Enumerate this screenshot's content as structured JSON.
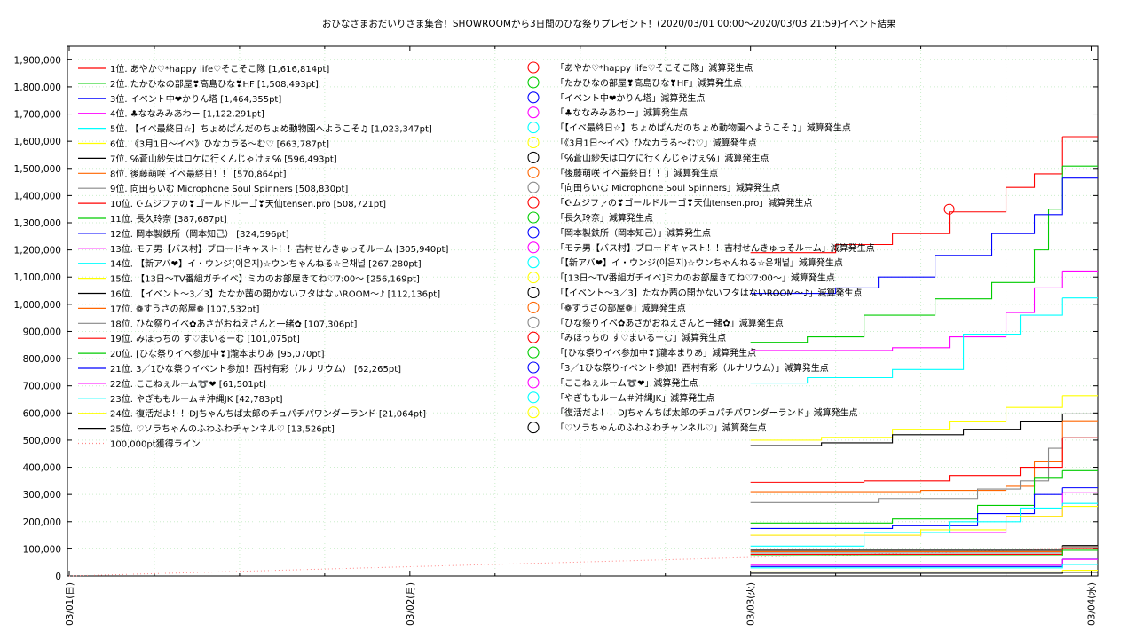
{
  "chart_data": {
    "type": "line",
    "title": "おひなさまおだいりさま集合！SHOWROOMから3日間のひな祭りプレゼント！(2020/03/01 00:00～2020/03/03 21:59)",
    "subtitle": "イベント結果",
    "xlabel": "",
    "ylabel": "",
    "ylim": [
      0,
      1950000
    ],
    "yticks": [
      "0",
      "100,000",
      "200,000",
      "300,000",
      "400,000",
      "500,000",
      "600,000",
      "700,000",
      "800,000",
      "900,000",
      "1,000,000",
      "1,100,000",
      "1,200,000",
      "1,300,000",
      "1,400,000",
      "1,500,000",
      "1,600,000",
      "1,700,000",
      "1,800,000",
      "1,900,000"
    ],
    "xlim": [
      "2020-03-01 00:00",
      "2020-03-04 02:00"
    ],
    "xticks": [
      "03/01(日)",
      "03/02(月)",
      "03/03(火)",
      "03/04(水)"
    ],
    "grid": true,
    "legend_position": "top-left",
    "series": [
      {
        "name": "1位. あやか♡*happy life♡そこそこ隊 [1,616,814pt]",
        "color": "#ff0000",
        "final": 1616814,
        "points": [
          [
            "03/03 00:00",
            1190000
          ],
          [
            "03/03 06:00",
            1220000
          ],
          [
            "03/03 10:00",
            1260000
          ],
          [
            "03/03 14:00",
            1340000
          ],
          [
            "03/03 18:00",
            1430000
          ],
          [
            "03/03 20:00",
            1480000
          ],
          [
            "03/03 21:59",
            1616814
          ]
        ]
      },
      {
        "name": "2位. たかひなの部屋❣高島ひな❣HF [1,508,493pt]",
        "color": "#00cc00",
        "final": 1508493,
        "points": [
          [
            "03/03 00:00",
            860000
          ],
          [
            "03/03 04:00",
            880000
          ],
          [
            "03/03 08:00",
            960000
          ],
          [
            "03/03 13:00",
            1020000
          ],
          [
            "03/03 17:00",
            1080000
          ],
          [
            "03/03 20:00",
            1200000
          ],
          [
            "03/03 21:00",
            1350000
          ],
          [
            "03/03 21:59",
            1508493
          ]
        ]
      },
      {
        "name": "3位. イベント中❤かりん塔 [1,464,355pt]",
        "color": "#0000ff",
        "final": 1464355,
        "points": [
          [
            "03/03 00:00",
            1040000
          ],
          [
            "03/03 06:00",
            1060000
          ],
          [
            "03/03 09:00",
            1100000
          ],
          [
            "03/03 13:00",
            1180000
          ],
          [
            "03/03 17:00",
            1260000
          ],
          [
            "03/03 20:00",
            1330000
          ],
          [
            "03/03 21:59",
            1464355
          ]
        ]
      },
      {
        "name": "4位. ♣ななみみあわー [1,122,291pt]",
        "color": "#ff00ff",
        "final": 1122291,
        "points": [
          [
            "03/03 00:00",
            830000
          ],
          [
            "03/03 10:00",
            840000
          ],
          [
            "03/03 14:00",
            880000
          ],
          [
            "03/03 18:00",
            970000
          ],
          [
            "03/03 20:00",
            1060000
          ],
          [
            "03/03 21:59",
            1122291
          ]
        ]
      },
      {
        "name": "5位. 【イベ最終日☆】ちょめぱんだのちょめ動物園へようこそ♫ [1,023,347pt]",
        "color": "#00ffff",
        "final": 1023347,
        "points": [
          [
            "03/03 00:00",
            710000
          ],
          [
            "03/03 04:00",
            730000
          ],
          [
            "03/03 10:00",
            760000
          ],
          [
            "03/03 15:00",
            890000
          ],
          [
            "03/03 19:00",
            960000
          ],
          [
            "03/03 21:59",
            1023347
          ]
        ]
      },
      {
        "name": "6位. 《3月1日～イベ》ひなカラる～む♡ [663,787pt]",
        "color": "#ffff00",
        "final": 663787,
        "points": [
          [
            "03/03 00:00",
            500000
          ],
          [
            "03/03 05:00",
            510000
          ],
          [
            "03/03 10:00",
            540000
          ],
          [
            "03/03 14:00",
            570000
          ],
          [
            "03/03 18:00",
            620000
          ],
          [
            "03/03 21:59",
            663787
          ]
        ]
      },
      {
        "name": "7位. ℅蒼山紗矢はロケに行くんじゃけぇ℅ [596,493pt]",
        "color": "#000000",
        "final": 596493,
        "points": [
          [
            "03/03 00:00",
            480000
          ],
          [
            "03/03 05:00",
            490000
          ],
          [
            "03/03 10:00",
            520000
          ],
          [
            "03/03 15:00",
            540000
          ],
          [
            "03/03 19:00",
            570000
          ],
          [
            "03/03 21:59",
            596493
          ]
        ]
      },
      {
        "name": "8位. 後藤萌咲 イベ最終日！！ [570,864pt]",
        "color": "#ff6600",
        "final": 570864,
        "points": [
          [
            "03/03 00:00",
            310000
          ],
          [
            "03/03 12:00",
            315000
          ],
          [
            "03/03 18:00",
            330000
          ],
          [
            "03/03 20:00",
            420000
          ],
          [
            "03/03 21:59",
            570864
          ]
        ]
      },
      {
        "name": "9位. 向田らいむ Microphone Soul Spinners [508,830pt]",
        "color": "#888888",
        "final": 508830,
        "points": [
          [
            "03/03 00:00",
            270000
          ],
          [
            "03/03 09:00",
            285000
          ],
          [
            "03/03 16:00",
            320000
          ],
          [
            "03/03 19:00",
            350000
          ],
          [
            "03/03 21:00",
            470000
          ],
          [
            "03/03 21:59",
            508830
          ]
        ]
      },
      {
        "name": "10位. ☪ムジファの❣ゴールドルーゴ❣天仙tensen.pro [508,721pt]",
        "color": "#ff0000",
        "final": 508721,
        "points": [
          [
            "03/03 00:00",
            345000
          ],
          [
            "03/03 08:00",
            350000
          ],
          [
            "03/03 14:00",
            370000
          ],
          [
            "03/03 19:00",
            400000
          ],
          [
            "03/03 21:59",
            508721
          ]
        ]
      },
      {
        "name": "11位. 長久玲奈 [387,687pt]",
        "color": "#00cc00",
        "final": 387687,
        "points": [
          [
            "03/03 00:00",
            195000
          ],
          [
            "03/03 10:00",
            210000
          ],
          [
            "03/03 16:00",
            260000
          ],
          [
            "03/03 20:00",
            360000
          ],
          [
            "03/03 21:59",
            387687
          ]
        ]
      },
      {
        "name": "12位. 岡本製鉄所（岡本知己） [324,596pt]",
        "color": "#0000ff",
        "final": 324596,
        "points": [
          [
            "03/03 00:00",
            175000
          ],
          [
            "03/03 10:00",
            185000
          ],
          [
            "03/03 16:00",
            230000
          ],
          [
            "03/03 20:00",
            300000
          ],
          [
            "03/03 21:59",
            324596
          ]
        ]
      },
      {
        "name": "13位. モテ男【バス村】ブロードキャスト！！吉村せんきゅっそルーム [305,940pt]",
        "color": "#ff00ff",
        "final": 305940,
        "points": [
          [
            "03/03 00:00",
            150000
          ],
          [
            "03/03 12:00",
            160000
          ],
          [
            "03/03 18:00",
            220000
          ],
          [
            "03/03 21:59",
            305940
          ]
        ]
      },
      {
        "name": "14位. 【新アバ❤】イ・ウンジ(이은지)☆ウンちゃんねる☆은채널 [267,280pt]",
        "color": "#00ffff",
        "final": 267280,
        "points": [
          [
            "03/03 00:00",
            110000
          ],
          [
            "03/03 08:00",
            160000
          ],
          [
            "03/03 14:00",
            200000
          ],
          [
            "03/03 19:00",
            250000
          ],
          [
            "03/03 21:59",
            267280
          ]
        ]
      },
      {
        "name": "15位. 【13日～TV番組ガチイベ】ミカのお部屋きてね♡7:00～ [256,169pt]",
        "color": "#ffff00",
        "final": 256169,
        "points": [
          [
            "03/03 00:00",
            150000
          ],
          [
            "03/03 12:00",
            170000
          ],
          [
            "03/03 18:00",
            220000
          ],
          [
            "03/03 21:59",
            256169
          ]
        ]
      },
      {
        "name": "16位. 【イベント～3／3】たなか茜の開かないフタはないROOM～♪ [112,136pt]",
        "color": "#000000",
        "final": 112136,
        "points": [
          [
            "03/03 00:00",
            95000
          ],
          [
            "03/03 21:59",
            112136
          ]
        ]
      },
      {
        "name": "17位. ❁すうさの部屋❁ [107,532pt]",
        "color": "#ff6600",
        "final": 107532,
        "points": [
          [
            "03/03 00:00",
            90000
          ],
          [
            "03/03 21:59",
            107532
          ]
        ]
      },
      {
        "name": "18位. ひな祭りイベ✿あさがおねえさんと一緒✿ [107,306pt]",
        "color": "#888888",
        "final": 107306,
        "points": [
          [
            "03/03 00:00",
            85000
          ],
          [
            "03/03 21:59",
            107306
          ]
        ]
      },
      {
        "name": "19位. みほっちの す♡まいるーむ [101,075pt]",
        "color": "#ff0000",
        "final": 101075,
        "points": [
          [
            "03/03 00:00",
            80000
          ],
          [
            "03/03 21:59",
            101075
          ]
        ]
      },
      {
        "name": "20位. [ひな祭りイベ参加中❣]瀧本まりあ [95,070pt]",
        "color": "#00cc00",
        "final": 95070,
        "points": [
          [
            "03/03 00:00",
            75000
          ],
          [
            "03/03 21:59",
            95070
          ]
        ]
      },
      {
        "name": "21位. 3／1ひな祭りイベント参加！西村有彩（ルナリウム） [62,265pt]",
        "color": "#0000ff",
        "final": 62265,
        "points": [
          [
            "03/03 00:00",
            35000
          ],
          [
            "03/03 21:59",
            62265
          ]
        ]
      },
      {
        "name": "22位. ここねぇルーム➰❤ [61,501pt]",
        "color": "#ff00ff",
        "final": 61501,
        "points": [
          [
            "03/03 00:00",
            40000
          ],
          [
            "03/03 21:59",
            61501
          ]
        ]
      },
      {
        "name": "23位. やぎももルーム＃沖縄JK [42,783pt]",
        "color": "#00ffff",
        "final": 42783,
        "points": [
          [
            "03/03 00:00",
            30000
          ],
          [
            "03/03 21:59",
            42783
          ]
        ]
      },
      {
        "name": "24位. 復活だよ！！DJちゃんちば太郎のチュパチパワンダーランド [21,064pt]",
        "color": "#ffff00",
        "final": 21064,
        "points": [
          [
            "03/03 00:00",
            15000
          ],
          [
            "03/03 21:59",
            21064
          ]
        ]
      },
      {
        "name": "25位. ♡ソラちゃんのふわふわチャンネル♡ [13,526pt]",
        "color": "#000000",
        "final": 13526,
        "points": [
          [
            "03/03 00:00",
            10000
          ],
          [
            "03/03 21:59",
            13526
          ]
        ]
      }
    ],
    "reference_line": {
      "name": "100,000pt獲得ライン",
      "color": "#ff8888",
      "points": [
        [
          "03/01 00:00",
          0
        ],
        [
          "03/03 21:59",
          100000
        ]
      ]
    },
    "penalty_legend": [
      {
        "label": "「あやか♡*happy life♡そこそこ隊」減算発生点",
        "color": "#ff0000"
      },
      {
        "label": "「たかひなの部屋❣高島ひな❣HF」減算発生点",
        "color": "#00cc00"
      },
      {
        "label": "「イベント中❤かりん塔」減算発生点",
        "color": "#0000ff"
      },
      {
        "label": "「♣ななみみあわー」減算発生点",
        "color": "#ff00ff"
      },
      {
        "label": "「【イベ最終日☆】ちょめぱんだのちょめ動物園へようこそ♫」減算発生点",
        "color": "#00ffff"
      },
      {
        "label": "「《3月1日～イベ》ひなカラる～む♡」減算発生点",
        "color": "#ffff00"
      },
      {
        "label": "「℅蒼山紗矢はロケに行くんじゃけぇ℅」減算発生点",
        "color": "#000000"
      },
      {
        "label": "「後藤萌咲 イベ最終日！！」減算発生点",
        "color": "#ff6600"
      },
      {
        "label": "「向田らいむ Microphone Soul Spinners」減算発生点",
        "color": "#888888"
      },
      {
        "label": "「☪ムジファの❣ゴールドルーゴ❣天仙tensen.pro」減算発生点",
        "color": "#ff0000"
      },
      {
        "label": "「長久玲奈」減算発生点",
        "color": "#00cc00"
      },
      {
        "label": "「岡本製鉄所（岡本知己）」減算発生点",
        "color": "#0000ff"
      },
      {
        "label": "「モテ男【バス村】ブロードキャスト！！吉村せんきゅっそルーム」減算発生点",
        "color": "#ff00ff"
      },
      {
        "label": "「【新アバ❤】イ・ウンジ(이은지)☆ウンちゃんねる☆은채널」減算発生点",
        "color": "#00ffff"
      },
      {
        "label": "「[13日～TV番組ガチイベ]ミカのお部屋きてね♡7:00～」減算発生点",
        "color": "#ffff00"
      },
      {
        "label": "「【イベント～3／3】たなか茜の開かないフタはないROOM～♪」減算発生点",
        "color": "#000000"
      },
      {
        "label": "「❁すうさの部屋❁」減算発生点",
        "color": "#ff6600"
      },
      {
        "label": "「ひな祭りイベ✿あさがおねえさんと一緒✿」減算発生点",
        "color": "#888888"
      },
      {
        "label": "「みほっちの す♡まいるーむ」減算発生点",
        "color": "#ff0000"
      },
      {
        "label": "「[ひな祭りイベ参加中❣]瀧本まりあ」減算発生点",
        "color": "#00cc00"
      },
      {
        "label": "「3／1ひな祭りイベント参加！西村有彩（ルナリウム）」減算発生点",
        "color": "#0000ff"
      },
      {
        "label": "「ここねぇルーム➰❤」減算発生点",
        "color": "#ff00ff"
      },
      {
        "label": "「やぎももルーム＃沖縄JK」減算発生点",
        "color": "#00ffff"
      },
      {
        "label": "「復活だよ！！DJちゃんちば太郎のチュパチパワンダーランド」減算発生点",
        "color": "#ffff00"
      },
      {
        "label": "「♡ソラちゃんのふわふわチャンネル♡」減算発生点",
        "color": "#000000"
      }
    ],
    "penalty_points": [
      {
        "series": "1位. あやか♡*happy life♡そこそこ隊 [1,616,814pt]",
        "x": "03/03 14:00",
        "y": 1350000,
        "color": "#ff0000"
      }
    ]
  }
}
